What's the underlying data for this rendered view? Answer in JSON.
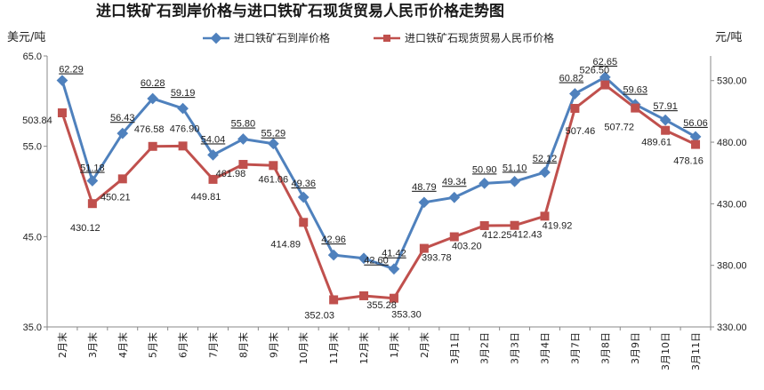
{
  "chart_data": {
    "type": "line",
    "title": "进口铁矿石到岸价格与进口铁矿石现货贸易人民币价格走势图",
    "ylabel_left": "美元/吨",
    "ylabel_right": "元/吨",
    "categories": [
      "2月末",
      "3月末",
      "4月末",
      "5月末",
      "6月末",
      "7月末",
      "8月末",
      "9月末",
      "10月末",
      "11月末",
      "12月末",
      "1月末",
      "2月末",
      "3月1日",
      "3月2日",
      "3月3日",
      "3月4日",
      "3月7日",
      "3月8日",
      "3月9日",
      "3月10日",
      "3月11日"
    ],
    "left_axis": {
      "min": 35,
      "max": 65,
      "ticks": [
        "35.0",
        "45.0",
        "55.0",
        "65.0"
      ]
    },
    "right_axis": {
      "min": 330,
      "max": 550,
      "ticks": [
        "330.00",
        "380.00",
        "430.00",
        "480.00",
        "530.00"
      ]
    },
    "legend_position": "top",
    "grid": false,
    "series": [
      {
        "name": "进口铁矿石到岸价格",
        "axis": "left",
        "color": "#4f81bd",
        "marker": "diamond",
        "values": [
          62.29,
          51.18,
          56.43,
          60.28,
          59.19,
          54.04,
          55.8,
          55.29,
          49.36,
          42.96,
          42.6,
          41.42,
          48.79,
          49.34,
          50.9,
          51.1,
          52.12,
          60.82,
          62.65,
          59.63,
          57.91,
          56.06
        ],
        "labels": [
          "62.29",
          "51.18",
          "56.43",
          "60.28",
          "59.19",
          "54.04",
          "55.80",
          "55.29",
          "49.36",
          "42.96",
          "42.60",
          "41.42",
          "48.79",
          "49.34",
          "50.90",
          "51.10",
          "52.12",
          "60.82",
          "62.65",
          "59.63",
          "57.91",
          "56.06"
        ]
      },
      {
        "name": "进口铁矿石现货贸易人民币价格",
        "axis": "right",
        "color": "#c0504d",
        "marker": "square",
        "values": [
          503.84,
          430.12,
          450.21,
          476.58,
          476.9,
          449.81,
          461.98,
          461.06,
          414.89,
          352.03,
          355.28,
          353.3,
          393.78,
          403.2,
          412.25,
          412.43,
          419.92,
          507.46,
          526.5,
          507.72,
          489.61,
          478.16
        ],
        "labels": [
          "503.84",
          "430.12",
          "450.21",
          "476.58",
          "476.90",
          "449.81",
          "461.98",
          "461.06",
          "414.89",
          "352.03",
          "355.28",
          "353.30",
          "393.78",
          "403.20",
          "412.25",
          "412.43",
          "419.92",
          "507.46",
          "526.50",
          "507.72",
          "489.61",
          "478.16"
        ]
      }
    ]
  }
}
